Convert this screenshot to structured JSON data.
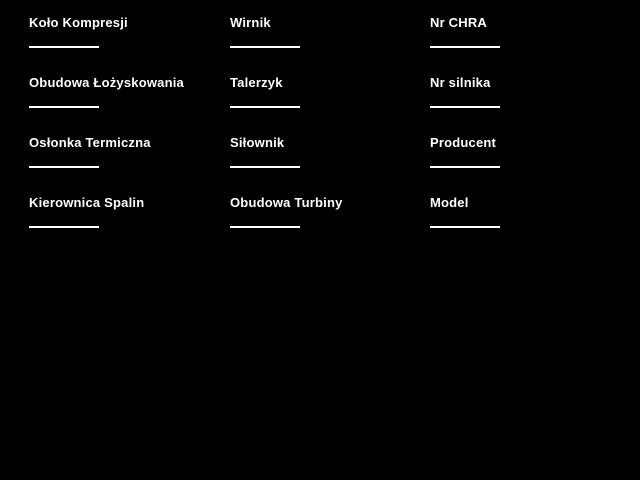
{
  "colors": {
    "background": "#000000",
    "label_text": "#ffffff",
    "blank_line": "#ffffff"
  },
  "form": {
    "fields": [
      {
        "label": "Koło Kompresji",
        "value": ""
      },
      {
        "label": "Wirnik",
        "value": ""
      },
      {
        "label": "Nr CHRA",
        "value": ""
      },
      {
        "label": "Obudowa Łożyskowania",
        "value": ""
      },
      {
        "label": "Talerzyk",
        "value": ""
      },
      {
        "label": "Nr silnika",
        "value": ""
      },
      {
        "label": "Osłonka Termiczna",
        "value": ""
      },
      {
        "label": "Siłownik",
        "value": ""
      },
      {
        "label": "Producent",
        "value": ""
      },
      {
        "label": "Kierownica Spalin",
        "value": ""
      },
      {
        "label": "Obudowa Turbiny",
        "value": ""
      },
      {
        "label": "Model",
        "value": ""
      }
    ]
  }
}
